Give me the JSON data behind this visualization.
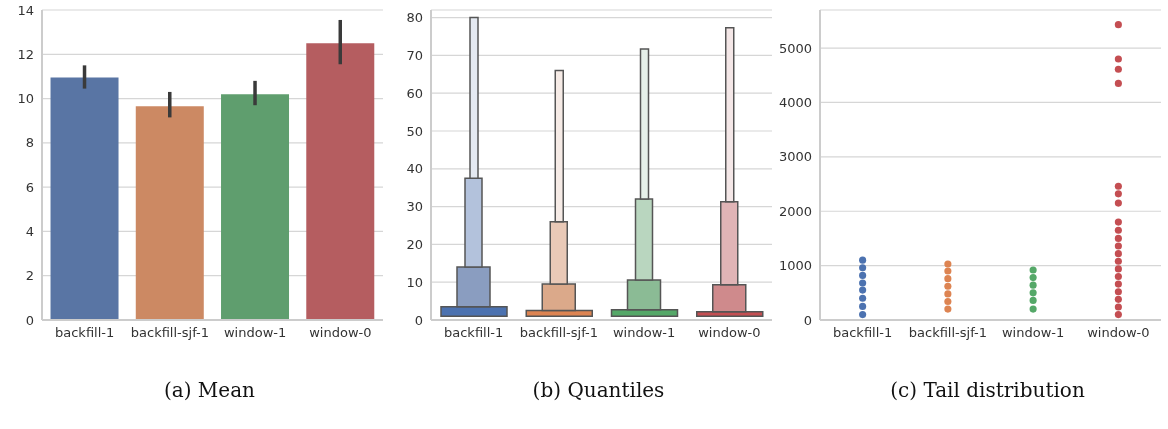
{
  "chart_data": [
    {
      "type": "bar",
      "title": "(a) Mean",
      "categories": [
        "backfill-1",
        "backfill-sjf-1",
        "window-1",
        "window-0"
      ],
      "values": [
        10.95,
        9.65,
        10.2,
        12.5
      ],
      "colors": [
        "#5975a4",
        "#cc8963",
        "#5f9e6e",
        "#b55d60"
      ],
      "errors": [
        [
          10.45,
          11.5
        ],
        [
          9.15,
          10.3
        ],
        [
          9.7,
          10.8
        ],
        [
          11.55,
          13.55
        ]
      ],
      "ylim": [
        0,
        14
      ],
      "yticks": [
        0,
        2,
        4,
        6,
        8,
        10,
        12,
        14
      ],
      "grid": "y"
    },
    {
      "type": "bar",
      "title": "(b) Quantiles",
      "categories": [
        "backfill-1",
        "backfill-sjf-1",
        "window-1",
        "window-0"
      ],
      "ylim": [
        0,
        82
      ],
      "yticks": [
        0,
        10,
        20,
        30,
        40,
        50,
        60,
        70,
        80
      ],
      "grid": "y",
      "series": [
        {
          "colors": [
            "#4c72b0",
            "#dd8452",
            "#55a868",
            "#c44e52"
          ],
          "base": [
            1,
            1,
            1,
            1
          ],
          "values": [
            2.5,
            1.5,
            1.7,
            1.2
          ]
        },
        {
          "colors": [
            "#8a9dc0",
            "#dba98a",
            "#8bbb95",
            "#cf8a8c"
          ],
          "base": [
            3.5,
            2.5,
            2.7,
            2.2
          ],
          "values": [
            10.5,
            7,
            7.9,
            7.1
          ]
        },
        {
          "colors": [
            "#b3c2dc",
            "#e9c9b7",
            "#b9d6bf",
            "#e0b4b6"
          ],
          "base": [
            14,
            9.5,
            10.6,
            9.3
          ],
          "values": [
            23.5,
            16.5,
            21.4,
            22
          ]
        },
        {
          "colors": [
            "#e4e9f1",
            "#f6ebe6",
            "#e6f0e9",
            "#f4e7e7"
          ],
          "base": [
            37.5,
            26,
            32,
            31.3
          ],
          "values": [
            42.5,
            40,
            39.7,
            46
          ]
        }
      ]
    },
    {
      "type": "scatter",
      "title": "(c) Tail distribution",
      "categories": [
        "backfill-1",
        "backfill-sjf-1",
        "window-1",
        "window-0"
      ],
      "ylim": [
        0,
        5700
      ],
      "yticks": [
        0,
        1000,
        2000,
        3000,
        4000,
        5000
      ],
      "grid": "y",
      "marker": "circle",
      "series": [
        {
          "color": "#4c72b0",
          "x": [
            "backfill-1",
            "backfill-1",
            "backfill-1",
            "backfill-1",
            "backfill-1",
            "backfill-1",
            "backfill-1",
            "backfill-1"
          ],
          "values": [
            1100,
            960,
            820,
            680,
            550,
            400,
            250,
            100
          ]
        },
        {
          "color": "#dd8452",
          "x": [
            "backfill-sjf-1",
            "backfill-sjf-1",
            "backfill-sjf-1",
            "backfill-sjf-1",
            "backfill-sjf-1",
            "backfill-sjf-1",
            "backfill-sjf-1"
          ],
          "values": [
            1030,
            900,
            760,
            620,
            480,
            340,
            200
          ]
        },
        {
          "color": "#55a868",
          "x": [
            "window-1",
            "window-1",
            "window-1",
            "window-1",
            "window-1",
            "window-1"
          ],
          "values": [
            920,
            780,
            640,
            500,
            360,
            200
          ]
        },
        {
          "color": "#c44e52",
          "x": [
            "window-0",
            "window-0",
            "window-0",
            "window-0",
            "window-0",
            "window-0",
            "window-0",
            "window-0",
            "window-0",
            "window-0",
            "window-0",
            "window-0",
            "window-0",
            "window-0",
            "window-0",
            "window-0",
            "window-0",
            "window-0",
            "window-0",
            "window-0"
          ],
          "values": [
            5430,
            4800,
            4610,
            4350,
            2460,
            2320,
            2150,
            1800,
            1650,
            1500,
            1360,
            1220,
            1080,
            940,
            800,
            660,
            520,
            380,
            240,
            100
          ]
        }
      ]
    }
  ]
}
